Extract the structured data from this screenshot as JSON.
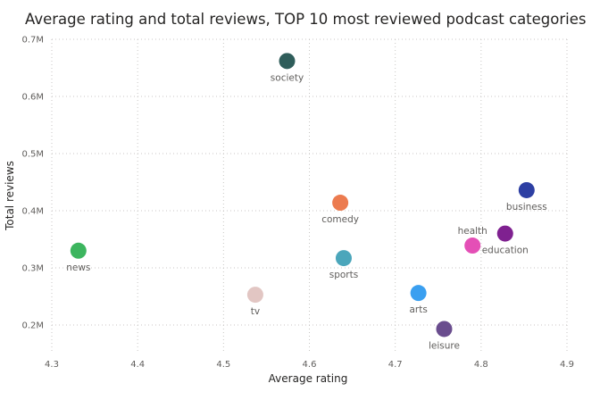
{
  "chart_data": {
    "type": "scatter",
    "title": "Average rating and total reviews, TOP 10 most reviewed podcast categories",
    "xlabel": "Average rating",
    "ylabel": "Total reviews",
    "xlim": [
      4.3,
      4.9
    ],
    "ylim": [
      0.15,
      0.7
    ],
    "xticks": [
      4.3,
      4.4,
      4.5,
      4.6,
      4.7,
      4.8,
      4.9
    ],
    "xtick_labels": [
      "4.3",
      "4.4",
      "4.5",
      "4.6",
      "4.7",
      "4.8",
      "4.9"
    ],
    "yticks": [
      0.2,
      0.3,
      0.4,
      0.5,
      0.6,
      0.7
    ],
    "ytick_labels": [
      "0.2M",
      "0.3M",
      "0.4M",
      "0.5M",
      "0.6M",
      "0.7M"
    ],
    "y_unit": "millions of reviews",
    "grid": true,
    "legend": "none",
    "points": [
      {
        "label": "society",
        "x": 4.574,
        "y": 0.662,
        "color": "#2f5d5a",
        "label_pos": "below"
      },
      {
        "label": "business",
        "x": 4.853,
        "y": 0.436,
        "color": "#2d3fa3",
        "label_pos": "below"
      },
      {
        "label": "comedy",
        "x": 4.636,
        "y": 0.414,
        "color": "#ec7b4f",
        "label_pos": "below"
      },
      {
        "label": "education",
        "x": 4.828,
        "y": 0.36,
        "color": "#7f2190",
        "label_pos": "below"
      },
      {
        "label": "health",
        "x": 4.79,
        "y": 0.339,
        "color": "#e44fb6",
        "label_pos": "above"
      },
      {
        "label": "news",
        "x": 4.331,
        "y": 0.33,
        "color": "#3cb55e",
        "label_pos": "below"
      },
      {
        "label": "sports",
        "x": 4.64,
        "y": 0.317,
        "color": "#4ba6bb",
        "label_pos": "below"
      },
      {
        "label": "arts",
        "x": 4.727,
        "y": 0.256,
        "color": "#3a9ff0",
        "label_pos": "below"
      },
      {
        "label": "tv",
        "x": 4.537,
        "y": 0.253,
        "color": "#e2c6c3",
        "label_pos": "below"
      },
      {
        "label": "leisure",
        "x": 4.757,
        "y": 0.193,
        "color": "#6a4d8e",
        "label_pos": "below"
      }
    ]
  }
}
